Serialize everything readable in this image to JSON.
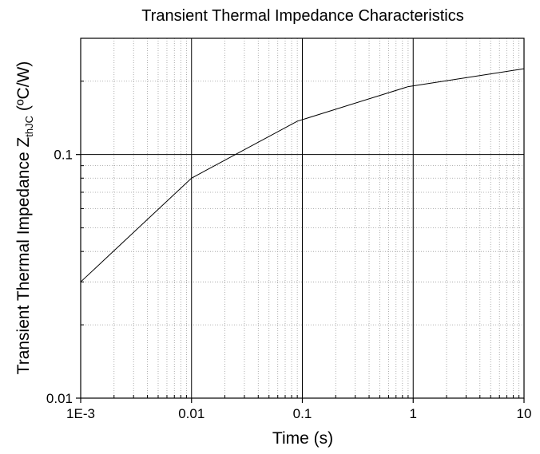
{
  "chart_data": {
    "type": "line",
    "title": "Transient Thermal Impedance Characteristics",
    "xlabel": "Time (s)",
    "ylabel": {
      "main": "Transient Thermal Impedance Z",
      "subscript": "thJC",
      "unit": " (ºC/W)"
    },
    "x_scale": "log",
    "y_scale": "log",
    "xlim": [
      0.001,
      10
    ],
    "ylim": [
      0.01,
      0.3
    ],
    "x_ticks": [
      {
        "value": 0.001,
        "label": "1E-3"
      },
      {
        "value": 0.01,
        "label": "0.01"
      },
      {
        "value": 0.1,
        "label": "0.1"
      },
      {
        "value": 1,
        "label": "1"
      },
      {
        "value": 10,
        "label": "10"
      }
    ],
    "y_ticks": [
      {
        "value": 0.01,
        "label": "0.01"
      },
      {
        "value": 0.1,
        "label": "0.1"
      }
    ],
    "grid": {
      "major": true,
      "minor": true,
      "minor_style": "dotted"
    },
    "series": [
      {
        "color": "#000000",
        "x": [
          0.001,
          0.01,
          0.09,
          0.9,
          10
        ],
        "y": [
          0.03,
          0.08,
          0.137,
          0.19,
          0.225
        ]
      }
    ]
  }
}
